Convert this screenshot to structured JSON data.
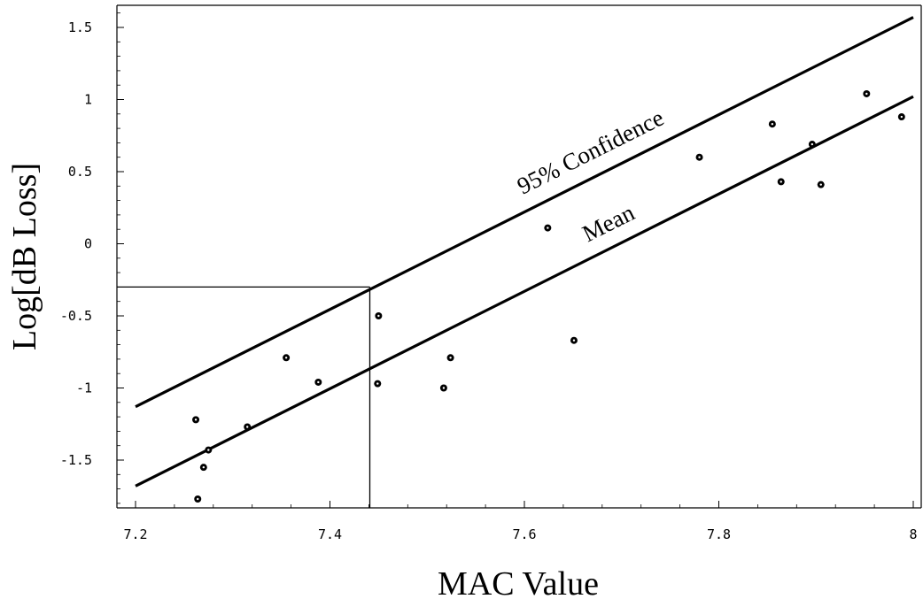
{
  "chart_data": {
    "type": "scatter",
    "xlabel": "MAC Value",
    "ylabel": "Log[dB Loss]",
    "xlim": [
      7.2,
      8.0
    ],
    "ylim": [
      -1.85,
      1.6
    ],
    "x_ticks": [
      7.2,
      7.4,
      7.6,
      7.8,
      8.0
    ],
    "x_tick_labels": [
      "7.2",
      "7.4",
      "7.6",
      "7.8",
      "8"
    ],
    "y_ticks": [
      -1.5,
      -1.0,
      -0.5,
      0,
      0.5,
      1.0,
      1.5
    ],
    "y_tick_labels": [
      "-1.5",
      "-1",
      "-0.5",
      "0",
      "0.5",
      "1",
      "1.5"
    ],
    "grid": false,
    "points": [
      {
        "x": 7.262,
        "y": -1.22
      },
      {
        "x": 7.264,
        "y": -1.77
      },
      {
        "x": 7.27,
        "y": -1.55
      },
      {
        "x": 7.275,
        "y": -1.43
      },
      {
        "x": 7.315,
        "y": -1.27
      },
      {
        "x": 7.355,
        "y": -0.79
      },
      {
        "x": 7.388,
        "y": -0.96
      },
      {
        "x": 7.449,
        "y": -0.97
      },
      {
        "x": 7.45,
        "y": -0.5
      },
      {
        "x": 7.517,
        "y": -1.0
      },
      {
        "x": 7.524,
        "y": -0.79
      },
      {
        "x": 7.624,
        "y": 0.11
      },
      {
        "x": 7.651,
        "y": -0.67
      },
      {
        "x": 7.78,
        "y": 0.6
      },
      {
        "x": 7.855,
        "y": 0.83
      },
      {
        "x": 7.864,
        "y": 0.43
      },
      {
        "x": 7.896,
        "y": 0.69
      },
      {
        "x": 7.905,
        "y": 0.41
      },
      {
        "x": 7.952,
        "y": 1.04
      },
      {
        "x": 7.988,
        "y": 0.88
      }
    ],
    "series": [
      {
        "name": "95% Confidence",
        "x": [
          7.2,
          8.0
        ],
        "values": [
          -1.13,
          1.57
        ]
      },
      {
        "name": "Mean",
        "x": [
          7.2,
          8.0
        ],
        "values": [
          -1.68,
          1.02
        ]
      }
    ],
    "reference_lines": {
      "x": 7.441,
      "y": -0.3
    }
  }
}
